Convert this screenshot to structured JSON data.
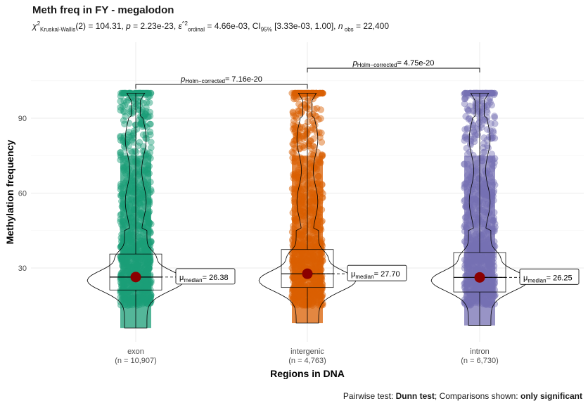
{
  "chart_data": {
    "type": "violin-box",
    "title": "Meth freq in FY - megalodon",
    "subtitle": {
      "stat_symbol": "χ",
      "stat_sup": "2",
      "stat_sub": "Kruskal-Wallis",
      "stat_df": "(2) = 104.31, ",
      "p_symbol": "p",
      "p_value": " = 2.23e-23, ",
      "effect_symbol": "ε",
      "effect_sup": "^2",
      "effect_sub": "ordinal",
      "effect_value": " = 4.66e-03, CI",
      "ci_sub": "95%",
      "ci_value": " [3.33e-03, 1.00], ",
      "n_symbol": "n",
      "n_sub": " obs",
      "n_value": " = 22,400"
    },
    "caption": {
      "prefix": "Pairwise test: ",
      "test": "Dunn test",
      "mid": "; Comparisons shown: ",
      "shown": "only significant"
    },
    "xlabel": "Regions in DNA",
    "ylabel": "Methylation frequency",
    "ylim": [
      -4,
      112
    ],
    "yticks": [
      "30",
      "60",
      "90"
    ],
    "categories": [
      {
        "name": "exon",
        "n_label": "(n = 10,907)",
        "color": "#1b9e77",
        "median": 26.38,
        "median_label": "= 26.38",
        "q1": 21.2,
        "q3": 35.6,
        "min": 6,
        "max": 100
      },
      {
        "name": "intergenic",
        "n_label": "(n = 4,763)",
        "color": "#d95f02",
        "median": 27.7,
        "median_label": "= 27.70",
        "q1": 22.2,
        "q3": 37.4,
        "min": 8,
        "max": 100
      },
      {
        "name": "intron",
        "n_label": "(n = 6,730)",
        "color": "#7570b3",
        "median": 26.25,
        "median_label": "= 26.25",
        "q1": 20.4,
        "q3": 36.2,
        "min": 7,
        "max": 100
      }
    ],
    "median_label": {
      "symbol": "μ",
      "sub": "median"
    },
    "comparisons": [
      {
        "from": "exon",
        "to": "intergenic",
        "label_prefix": "p",
        "label_sub": "Holm−corrected",
        "label_value": "= 7.16e-20",
        "y": 103.5
      },
      {
        "from": "intergenic",
        "to": "intron",
        "label_prefix": "p",
        "label_sub": "Holm−corrected",
        "label_value": "= 4.75e-20",
        "y": 110
      }
    ],
    "median_color": "#8b0000",
    "grid": true,
    "legend": "none"
  }
}
